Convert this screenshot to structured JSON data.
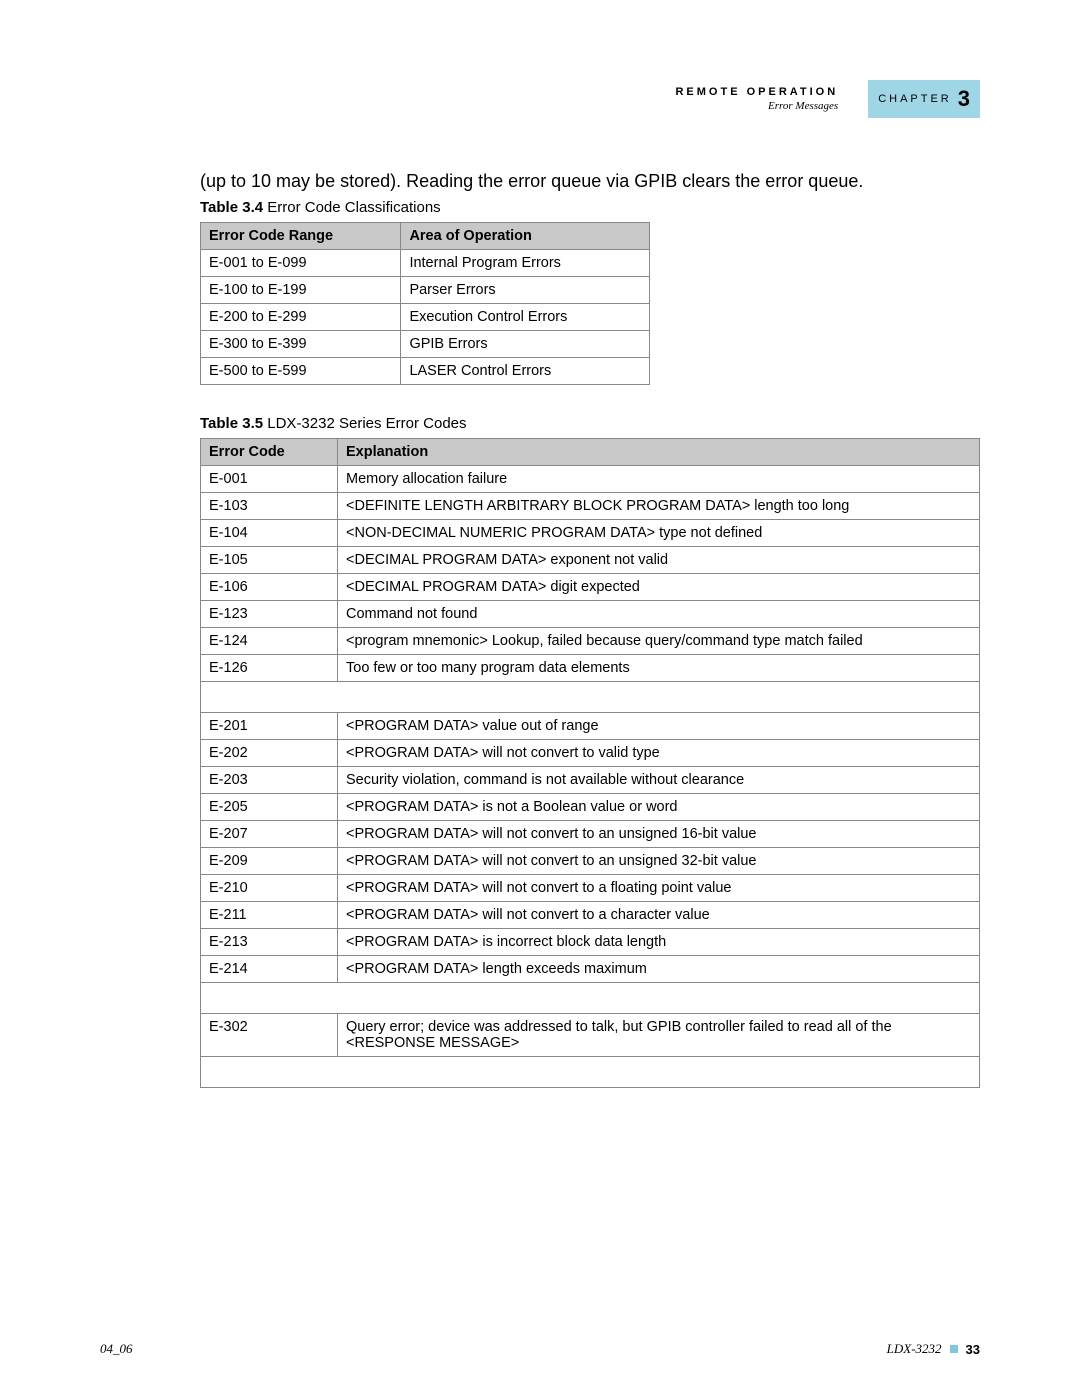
{
  "header": {
    "title": "REMOTE OPERATION",
    "subtitle": "Error Messages",
    "chapter_label": "CHAPTER",
    "chapter_num": "3"
  },
  "intro": "(up to 10 may be stored). Reading the error queue via GPIB clears the error queue.",
  "table1": {
    "caption_bold": "Table 3.4",
    "caption_rest": "  Error Code Classifications",
    "columns": [
      "Error Code Range",
      "Area of Operation"
    ],
    "rows": [
      [
        "E-001 to E-099",
        "Internal Program Errors"
      ],
      [
        "E-100 to E-199",
        "Parser Errors"
      ],
      [
        "E-200 to E-299",
        "Execution Control Errors"
      ],
      [
        "E-300 to E-399",
        "GPIB Errors"
      ],
      [
        "E-500 to E-599",
        "LASER Control Errors"
      ]
    ]
  },
  "table2": {
    "caption_bold": "Table 3.5",
    "caption_rest": "  LDX-3232 Series Error Codes",
    "columns": [
      "Error Code",
      "Explanation"
    ],
    "rows": [
      [
        "E-001",
        "Memory allocation failure"
      ],
      [
        "E-103",
        "<DEFINITE LENGTH ARBITRARY BLOCK PROGRAM DATA> length too long"
      ],
      [
        "E-104",
        "<NON-DECIMAL NUMERIC PROGRAM DATA> type not defined"
      ],
      [
        "E-105",
        "<DECIMAL PROGRAM DATA> exponent not valid"
      ],
      [
        "E-106",
        "<DECIMAL PROGRAM DATA> digit expected"
      ],
      [
        "E-123",
        "Command not found"
      ],
      [
        "E-124",
        "<program mnemonic> Lookup, failed because query/command type match failed"
      ],
      [
        "E-126",
        "Too few or too many program data elements"
      ],
      [
        "",
        ""
      ],
      [
        "E-201",
        "<PROGRAM DATA> value out of range"
      ],
      [
        "E-202",
        "<PROGRAM DATA> will not convert to valid type"
      ],
      [
        "E-203",
        "Security violation, command is not available without clearance"
      ],
      [
        "E-205",
        "<PROGRAM DATA> is not a Boolean value or word"
      ],
      [
        "E-207",
        "<PROGRAM DATA> will not convert to an unsigned 16-bit value"
      ],
      [
        "E-209",
        "<PROGRAM DATA> will not convert to an unsigned 32-bit value"
      ],
      [
        "E-210",
        "<PROGRAM DATA> will not convert to a floating point value"
      ],
      [
        "E-211",
        "<PROGRAM DATA> will not convert to a character value"
      ],
      [
        "E-213",
        "<PROGRAM DATA> is incorrect block data length"
      ],
      [
        "E-214",
        "<PROGRAM DATA> length exceeds maximum"
      ],
      [
        "",
        ""
      ],
      [
        "E-302",
        "Query error; device was addressed to talk, but GPIB controller failed to read all of the <RESPONSE MESSAGE>"
      ],
      [
        "",
        ""
      ]
    ]
  },
  "footer": {
    "left": "04_06",
    "model": "LDX-3232",
    "page": "33"
  }
}
